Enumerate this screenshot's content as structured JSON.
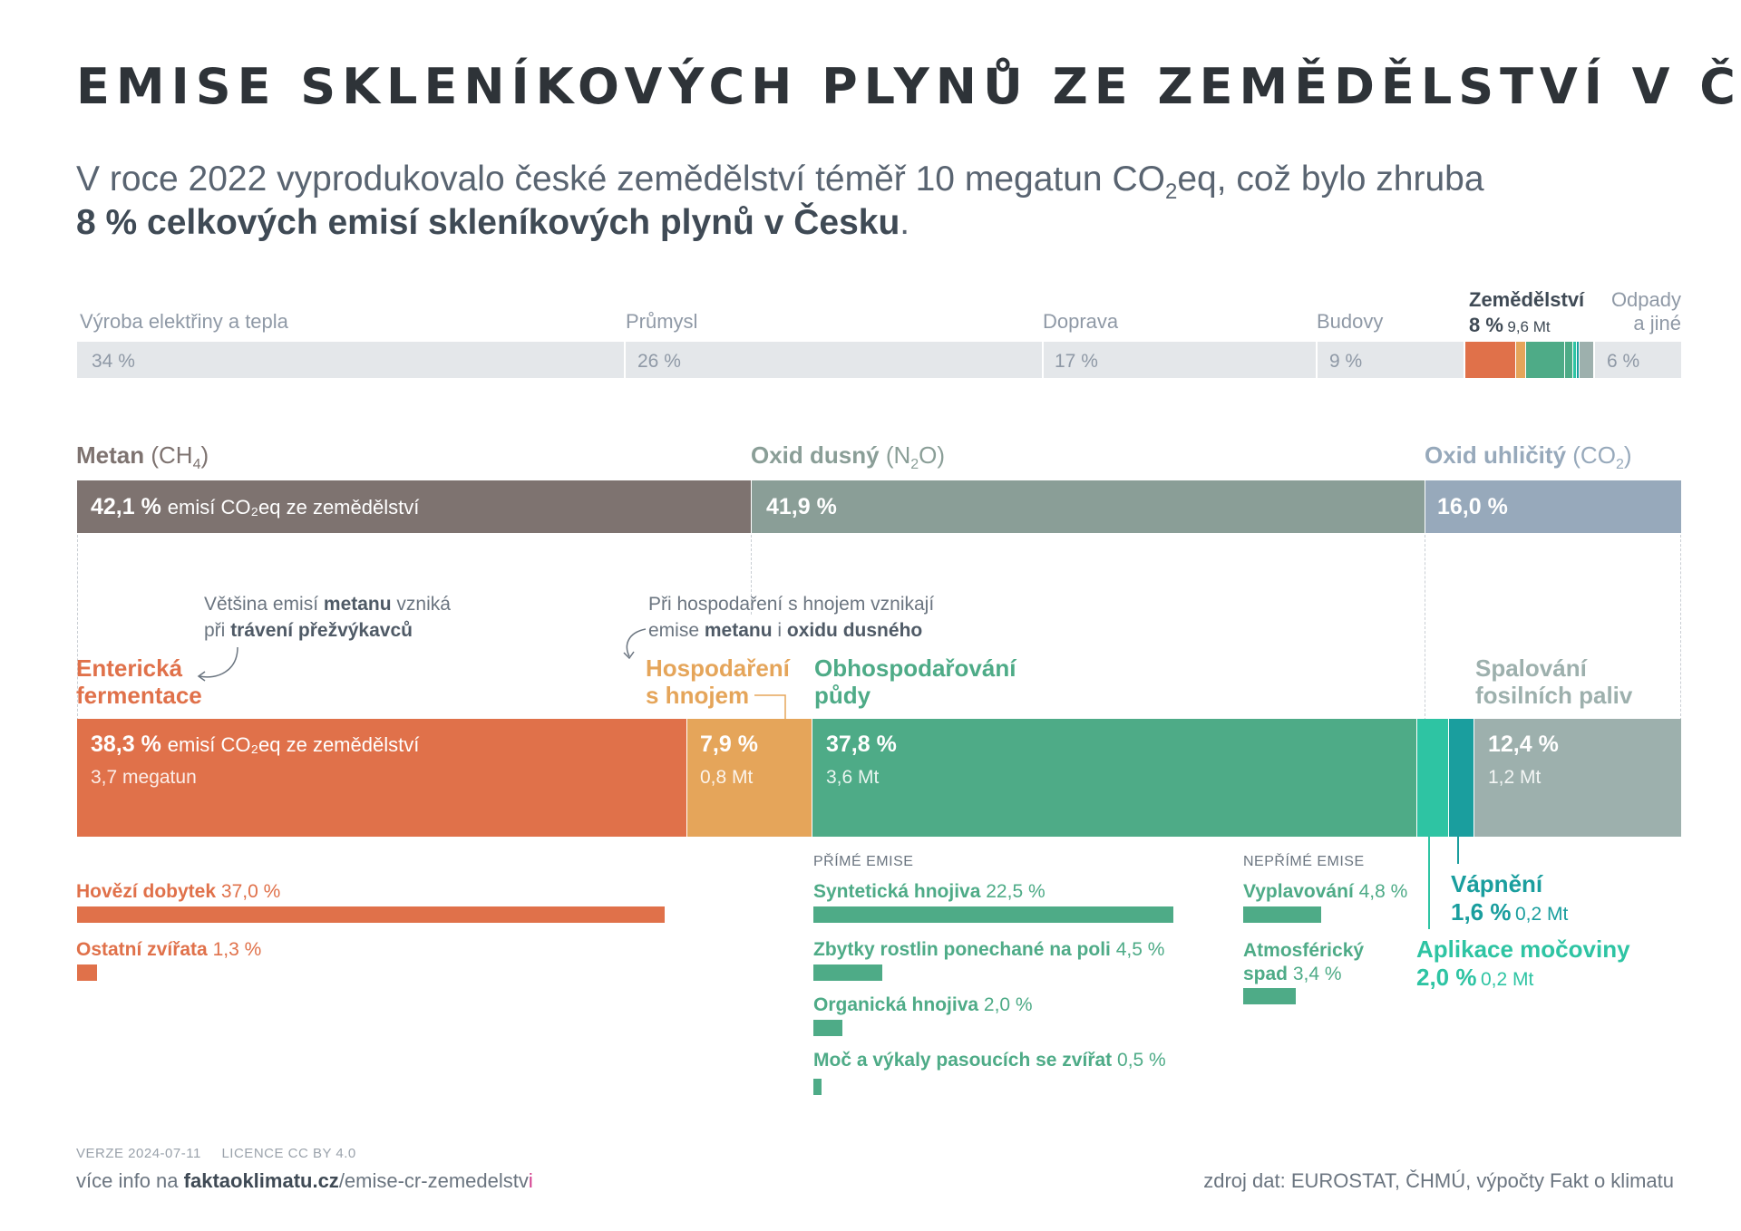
{
  "title": "EMISE SKLENÍKOVÝCH PLYNŮ ZE ZEMĚDĚLSTVÍ V ČR",
  "subtitle": {
    "line1_pre": "V roce 2022 vyprodukovalo české zemědělství téměř 10 megatun CO",
    "line1_sub": "2",
    "line1_post": "eq, což bylo zhruba",
    "line2_bold": "8 % celkových emisí skleníkových plynů v Česku",
    "line2_end": "."
  },
  "chart_data": [
    {
      "type": "bar",
      "subtype": "stacked-100",
      "categories": [
        "Výroba elektřiny a tepla",
        "Průmysl",
        "Doprava",
        "Budovy",
        "Zemědělství",
        "Odpady a jiné"
      ],
      "values": [
        34,
        26,
        17,
        9,
        8,
        6
      ],
      "value_labels": [
        "34 %",
        "26 %",
        "17 %",
        "9 %",
        "8 %",
        "6 %"
      ],
      "highlight": {
        "category": "Zemědělství",
        "pct": "8 %",
        "amount": "9,6 Mt"
      }
    },
    {
      "type": "bar",
      "subtype": "stacked-100",
      "series": [
        {
          "name": "Metan (CH4)",
          "value": 42.1,
          "label": "42,1 %",
          "note": "emisí CO₂eq ze zemědělství",
          "color": "#7e7370"
        },
        {
          "name": "Oxid dusný (N2O)",
          "value": 41.9,
          "label": "41,9 %",
          "color": "#8a9e97"
        },
        {
          "name": "Oxid uhličitý (CO2)",
          "value": 16.0,
          "label": "16,0 %",
          "color": "#97a9bb"
        }
      ]
    },
    {
      "type": "bar",
      "subtype": "stacked-100",
      "series": [
        {
          "name": "Enterická fermentace",
          "value": 38.3,
          "label": "38,3 %",
          "amount": "3,7 megatun",
          "color": "#e0714a"
        },
        {
          "name": "Hospodaření s hnojem",
          "value": 7.9,
          "label": "7,9 %",
          "amount": "0,8 Mt",
          "color": "#e5a55a"
        },
        {
          "name": "Obhospodařování půdy",
          "value": 37.8,
          "label": "37,8 %",
          "amount": "3,6 Mt",
          "color": "#4eab87"
        },
        {
          "name": "Aplikace močoviny",
          "value": 2.0,
          "label": "2,0 %",
          "amount": "0,2 Mt",
          "color": "#2ec4a3"
        },
        {
          "name": "Vápnění",
          "value": 1.6,
          "label": "1,6 %",
          "amount": "0,2 Mt",
          "color": "#1a9e9e"
        },
        {
          "name": "Spalování fosilních paliv",
          "value": 12.4,
          "label": "12,4 %",
          "amount": "1,2 Mt",
          "color": "#9db0ad"
        }
      ]
    },
    {
      "type": "bar",
      "subtype": "breakdown",
      "groups": [
        {
          "name": "Enterická fermentace",
          "items": [
            {
              "name": "Hovězí dobytek",
              "value": 37.0,
              "label": "37,0 %"
            },
            {
              "name": "Ostatní zvířata",
              "value": 1.3,
              "label": "1,3 %"
            }
          ]
        },
        {
          "name": "PŘÍMÉ EMISE",
          "items": [
            {
              "name": "Syntetická hnojiva",
              "value": 22.5,
              "label": "22,5 %"
            },
            {
              "name": "Zbytky rostlin ponechané na poli",
              "value": 4.5,
              "label": "4,5 %"
            },
            {
              "name": "Organická hnojiva",
              "value": 2.0,
              "label": "2,0 %"
            },
            {
              "name": "Moč a výkaly pasoucích se zvířat",
              "value": 0.5,
              "label": "0,5 %"
            }
          ]
        },
        {
          "name": "NEPŘÍMÉ EMISE",
          "items": [
            {
              "name": "Vyplavování",
              "value": 4.8,
              "label": "4,8 %"
            },
            {
              "name": "Atmosférický spad",
              "value": 3.4,
              "label": "3,4 %"
            }
          ]
        }
      ]
    }
  ],
  "top": {
    "labels": [
      "Výroba elektřiny a tepla",
      "Průmysl",
      "Doprava",
      "Budovy"
    ],
    "values": [
      "34 %",
      "26 %",
      "17 %",
      "9 %"
    ],
    "agri_name": "Zemědělství",
    "agri_pct": "8 %",
    "agri_amt": "9,6 Mt",
    "other_line1": "Odpady",
    "other_line2": "a jiné",
    "other_value": "6 %"
  },
  "gases": {
    "ch4_name": "Metan",
    "ch4_formula_pre": "(CH",
    "ch4_formula_sub": "4",
    "ch4_formula_post": ")",
    "ch4_pct": "42,1 %",
    "ch4_note": "emisí CO₂eq ze zemědělství",
    "n2o_name": "Oxid dusný",
    "n2o_formula_pre": "(N",
    "n2o_formula_sub": "2",
    "n2o_formula_post": "O)",
    "n2o_pct": "41,9 %",
    "co2_name": "Oxid uhličitý",
    "co2_formula_pre": "(CO",
    "co2_formula_sub": "2",
    "co2_formula_post": ")",
    "co2_pct": "16,0 %"
  },
  "notes": {
    "methane_1_pre": "Většina emisí ",
    "methane_1_bold": "metanu",
    "methane_1_post": " vzniká",
    "methane_2_pre": "při ",
    "methane_2_bold": "trávení přežvýkavců",
    "manure_1": "Při hospodaření s hnojem vznikají",
    "manure_2_pre": "emise ",
    "manure_2_b1": "metanu",
    "manure_2_mid": " i ",
    "manure_2_b2": "oxidu dusného"
  },
  "sources": {
    "enteric_l1": "Enterická",
    "enteric_l2": "fermentace",
    "enteric_pct": "38,3 %",
    "enteric_note": "emisí CO₂eq ze zemědělství",
    "enteric_amt": "3,7 megatun",
    "manure_l1": "Hospodaření",
    "manure_l2": "s hnojem",
    "manure_pct": "7,9 %",
    "manure_amt": "0,8 Mt",
    "soil_l1": "Obhospodařování",
    "soil_l2": "půdy",
    "soil_pct": "37,8 %",
    "soil_amt": "3,6 Mt",
    "fuel_l1": "Spalování",
    "fuel_l2": "fosilních paliv",
    "fuel_pct": "12,4 %",
    "fuel_amt": "1,2 Mt",
    "liming_name": "Vápnění",
    "liming_pct": "1,6 %",
    "liming_amt": "0,2 Mt",
    "urea_name": "Aplikace močoviny",
    "urea_pct": "2,0 %",
    "urea_amt": "0,2 Mt"
  },
  "breakdown": {
    "cattle_name": "Hovězí dobytek",
    "cattle_pct": "37,0 %",
    "other_animals_name": "Ostatní zvířata",
    "other_animals_pct": "1,3 %",
    "direct_caption": "PŘÍMÉ EMISE",
    "synth_name": "Syntetická hnojiva",
    "synth_pct": "22,5 %",
    "residues_name": "Zbytky rostlin ponechané na poli",
    "residues_pct": "4,5 %",
    "organic_name": "Organická hnojiva",
    "organic_pct": "2,0 %",
    "grazing_name": "Moč a výkaly pasoucích se zvířat",
    "grazing_pct": "0,5 %",
    "indirect_caption": "NEPŘÍMÉ EMISE",
    "leach_name": "Vyplavování",
    "leach_pct": "4,8 %",
    "atmo_l1": "Atmosférický",
    "atmo_l2": "spad",
    "atmo_pct": "3,4 %"
  },
  "footer": {
    "version": "VERZE 2024-07-11",
    "license": "LICENCE CC BY 4.0",
    "more_pre": "více info na ",
    "more_domain": "faktaoklimatu.cz",
    "more_path": "/emise-cr-zemedelstv",
    "more_last": "i",
    "source": "zdroj dat: EUROSTAT, ČHMÚ, výpočty Fakt o klimatu"
  },
  "colors": {
    "title": "#2e3338",
    "methane": "#7e7370",
    "n2o": "#8a9e97",
    "co2": "#97a9bb",
    "enteric": "#e0714a",
    "manure": "#e5a55a",
    "soil": "#4eab87",
    "urea": "#2ec4a3",
    "liming": "#1a9e9e",
    "fuel": "#9db0ad",
    "grey_bar": "#e4e7ea"
  }
}
